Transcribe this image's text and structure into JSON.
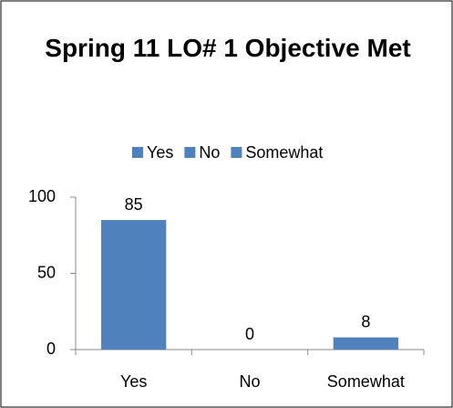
{
  "chart_data": {
    "type": "bar",
    "title": "Spring 11 LO# 1 Objective Met",
    "categories": [
      "Yes",
      "No",
      "Somewhat"
    ],
    "values": [
      85,
      0,
      8
    ],
    "color": "#4f81bd",
    "ylim": [
      0,
      100
    ],
    "yticks": [
      0,
      50,
      100
    ],
    "grid": false,
    "legend": "top"
  }
}
